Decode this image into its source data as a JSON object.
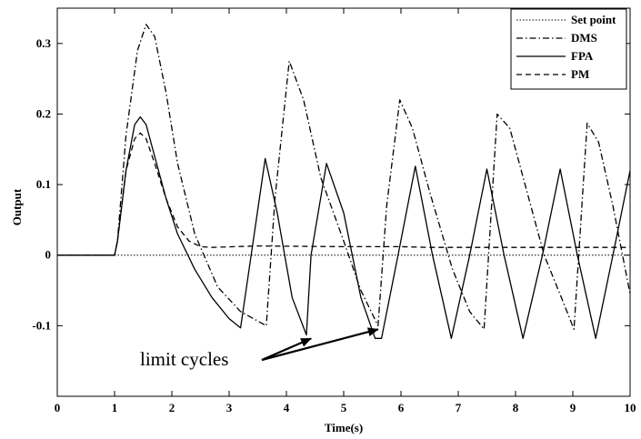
{
  "chart_data": {
    "type": "line",
    "xlabel": "Time(s)",
    "ylabel": "Output",
    "xlim": [
      0,
      10
    ],
    "ylim": [
      -0.2,
      0.35
    ],
    "xticks": [
      0,
      1,
      2,
      3,
      4,
      5,
      6,
      7,
      8,
      9,
      10
    ],
    "yticks": [
      -0.1,
      0,
      0.1,
      0.2,
      0.3
    ],
    "ytick_labels": [
      "-0.1",
      "0",
      "0.1",
      "0.2",
      "0.3"
    ],
    "grid": false,
    "legend_position": "top-right",
    "series": [
      {
        "name": "Set point",
        "style": "dotted",
        "color": "#000000",
        "x": [
          0,
          10
        ],
        "y": [
          0,
          0
        ]
      },
      {
        "name": "DMS",
        "style": "dashdot",
        "color": "#000000",
        "x": [
          0,
          1.0,
          1.05,
          1.2,
          1.4,
          1.55,
          1.7,
          1.9,
          2.1,
          2.4,
          2.8,
          3.2,
          3.65,
          3.8,
          4.05,
          4.3,
          4.6,
          5.0,
          5.3,
          5.6,
          5.75,
          5.98,
          6.2,
          6.5,
          6.9,
          7.2,
          7.45,
          7.68,
          7.9,
          8.2,
          8.5,
          8.8,
          9.02,
          9.25,
          9.45,
          9.7,
          10.0
        ],
        "y": [
          0,
          0,
          0.02,
          0.17,
          0.29,
          0.327,
          0.31,
          0.23,
          0.13,
          0.03,
          -0.045,
          -0.08,
          -0.1,
          0.08,
          0.275,
          0.22,
          0.11,
          0.02,
          -0.05,
          -0.1,
          0.07,
          0.22,
          0.18,
          0.09,
          -0.02,
          -0.08,
          -0.105,
          0.2,
          0.18,
          0.09,
          0.0,
          -0.06,
          -0.105,
          0.187,
          0.16,
          0.07,
          -0.055
        ]
      },
      {
        "name": "FPA",
        "style": "solid",
        "color": "#000000",
        "x": [
          0,
          1.0,
          1.05,
          1.2,
          1.35,
          1.45,
          1.55,
          1.7,
          1.9,
          2.1,
          2.4,
          2.7,
          3.0,
          3.2,
          3.42,
          3.63,
          3.84,
          4.1,
          4.35,
          4.43,
          4.7,
          5.0,
          5.3,
          5.55,
          5.66,
          5.95,
          6.25,
          6.55,
          6.88,
          7.2,
          7.5,
          7.8,
          8.13,
          8.47,
          8.78,
          9.08,
          9.4,
          9.7,
          10.0
        ],
        "y": [
          0,
          0,
          0.02,
          0.12,
          0.185,
          0.196,
          0.185,
          0.14,
          0.08,
          0.03,
          -0.02,
          -0.06,
          -0.09,
          -0.103,
          0.02,
          0.137,
          0.06,
          -0.06,
          -0.113,
          0.0,
          0.13,
          0.06,
          -0.06,
          -0.118,
          -0.118,
          0.0,
          0.126,
          0.0,
          -0.118,
          0.0,
          0.122,
          0.0,
          -0.118,
          0.0,
          0.122,
          0.0,
          -0.118,
          0.0,
          0.12
        ]
      },
      {
        "name": "PM",
        "style": "dashed",
        "color": "#000000",
        "x": [
          0,
          1.0,
          1.05,
          1.2,
          1.35,
          1.45,
          1.55,
          1.7,
          1.9,
          2.1,
          2.3,
          2.5,
          2.7,
          3.5,
          5.0,
          6.0,
          6.5,
          8.0,
          10.0
        ],
        "y": [
          0,
          0,
          0.02,
          0.12,
          0.165,
          0.173,
          0.165,
          0.13,
          0.08,
          0.04,
          0.02,
          0.012,
          0.011,
          0.013,
          0.012,
          0.012,
          0.011,
          0.011,
          0.011
        ]
      }
    ],
    "annotations": [
      {
        "text": "limit cycles",
        "arrows_to": [
          [
            4.43,
            -0.113
          ],
          [
            5.6,
            -0.1
          ]
        ]
      }
    ]
  }
}
